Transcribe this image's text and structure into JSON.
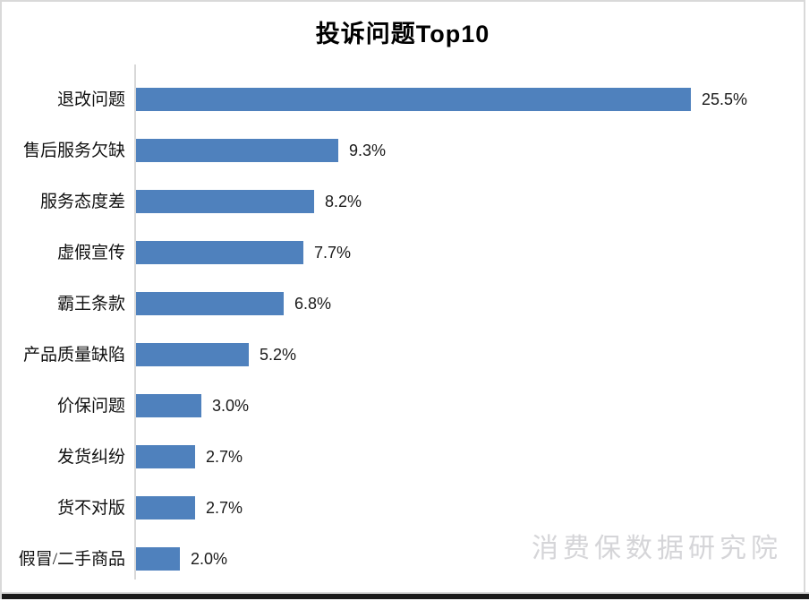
{
  "chart": {
    "title": "投诉问题Top10",
    "watermark": "消费保数据研究院",
    "colors": {
      "bar": "#4F81BD",
      "axis": "#d8d8d8",
      "title": "#000000",
      "category_label": "#111111",
      "value_label": "#1a1a1a",
      "watermark": "#d5d5d8",
      "panel_border": "#d9d9d9",
      "bottom_strip": "#1b1b1b"
    }
  },
  "chart_data": {
    "type": "bar",
    "orientation": "horizontal",
    "title": "投诉问题Top10",
    "categories": [
      "退改问题",
      "售后服务欠缺",
      "服务态度差",
      "虚假宣传",
      "霸王条款",
      "产品质量缺陷",
      "价保问题",
      "发货纠纷",
      "货不对版",
      "假冒/二手商品"
    ],
    "values": [
      25.5,
      9.3,
      8.2,
      7.7,
      6.8,
      5.2,
      3.0,
      2.7,
      2.7,
      2.0
    ],
    "value_suffix": "%",
    "xlabel": "",
    "ylabel": "",
    "xlim": [
      0,
      30.6
    ],
    "grid": false,
    "legend": false,
    "data_labels": true,
    "annotations": [
      "消费保数据研究院"
    ]
  }
}
